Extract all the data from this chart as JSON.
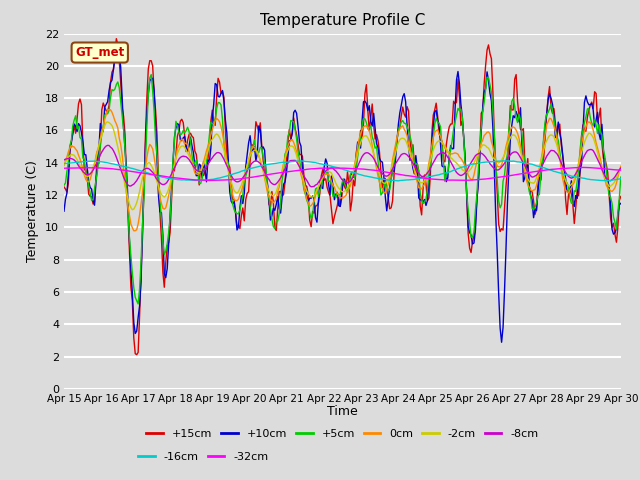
{
  "title": "Temperature Profile C",
  "xlabel": "Time",
  "ylabel": "Temperature (C)",
  "ylim": [
    0,
    22
  ],
  "yticks": [
    0,
    2,
    4,
    6,
    8,
    10,
    12,
    14,
    16,
    18,
    20,
    22
  ],
  "plot_bg_color": "#dcdcdc",
  "grid_color": "#ffffff",
  "annotation_text": "GT_met",
  "annotation_bg": "#ffffcc",
  "annotation_border": "#8B4513",
  "annotation_text_color": "#cc0000",
  "series": [
    {
      "label": "+15cm",
      "color": "#dd0000",
      "lw": 1.0
    },
    {
      "label": "+10cm",
      "color": "#0000cc",
      "lw": 1.0
    },
    {
      "label": "+5cm",
      "color": "#00cc00",
      "lw": 1.0
    },
    {
      "label": "0cm",
      "color": "#ff8800",
      "lw": 1.0
    },
    {
      "label": "-2cm",
      "color": "#cccc00",
      "lw": 1.0
    },
    {
      "label": "-8cm",
      "color": "#cc00cc",
      "lw": 1.0
    },
    {
      "label": "-16cm",
      "color": "#00cccc",
      "lw": 1.0
    },
    {
      "label": "-32cm",
      "color": "#ff00ff",
      "lw": 1.0
    }
  ],
  "xtick_labels": [
    "Apr 15",
    "Apr 16",
    "Apr 17",
    "Apr 18",
    "Apr 19",
    "Apr 20",
    "Apr 21",
    "Apr 22",
    "Apr 23",
    "Apr 24",
    "Apr 25",
    "Apr 26",
    "Apr 27",
    "Apr 28",
    "Apr 29",
    "Apr 30"
  ]
}
